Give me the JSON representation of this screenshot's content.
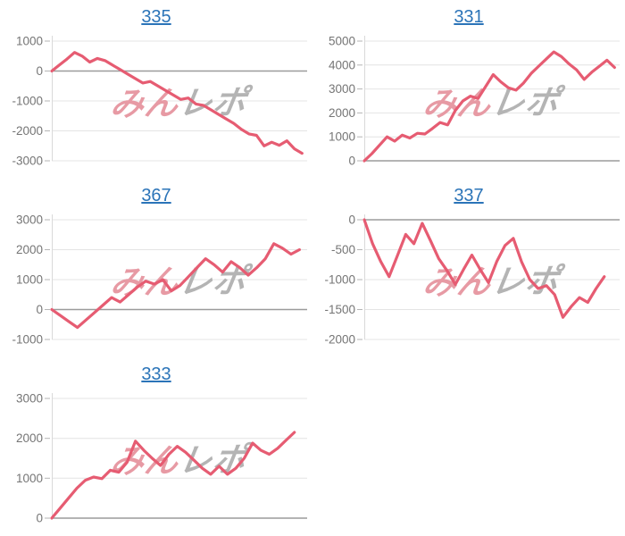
{
  "page": {
    "background": "#ffffff"
  },
  "watermark": {
    "part1": "みん",
    "part2": "レポ"
  },
  "colors": {
    "line": "#e65c72",
    "title_blue": "#2b74b8",
    "tick_gray": "#757575",
    "grid": "#e4e4e4",
    "zero_line": "#9b9b9b",
    "tick_mark": "#b5b5b5",
    "plot_border": "#d9d9d9",
    "watermark_red": "#e79aa4",
    "watermark_gray": "#b4b4b4"
  },
  "chart_data": [
    {
      "type": "line",
      "title": "335",
      "xlabel": "",
      "ylabel": "",
      "ylim": [
        -3000,
        1000
      ],
      "ticks": [
        1000,
        0,
        -1000,
        -2000,
        -3000
      ],
      "grid": true,
      "legend": false,
      "x_end": 0.98,
      "values": [
        0,
        200,
        400,
        620,
        500,
        300,
        420,
        350,
        200,
        50,
        -100,
        -250,
        -400,
        -350,
        -500,
        -650,
        -800,
        -950,
        -900,
        -1100,
        -1150,
        -1300,
        -1450,
        -1600,
        -1750,
        -1950,
        -2100,
        -2150,
        -2500,
        -2380,
        -2480,
        -2330,
        -2600,
        -2750
      ]
    },
    {
      "type": "line",
      "title": "331",
      "xlabel": "",
      "ylabel": "",
      "ylim": [
        0,
        5000
      ],
      "ticks": [
        5000,
        4000,
        3000,
        2000,
        1000,
        0
      ],
      "grid": true,
      "legend": false,
      "x_end": 0.98,
      "values": [
        0,
        300,
        650,
        1000,
        820,
        1070,
        950,
        1150,
        1120,
        1350,
        1600,
        1500,
        2100,
        2500,
        2700,
        2600,
        3100,
        3600,
        3300,
        3050,
        2950,
        3250,
        3650,
        3950,
        4250,
        4550,
        4350,
        4050,
        3800,
        3400,
        3700,
        3950,
        4200,
        3900
      ]
    },
    {
      "type": "line",
      "title": "367",
      "xlabel": "",
      "ylabel": "",
      "ylim": [
        -1000,
        3000
      ],
      "ticks": [
        3000,
        2000,
        1000,
        0,
        -1000
      ],
      "grid": true,
      "legend": false,
      "x_end": 0.97,
      "values": [
        0,
        -200,
        -400,
        -600,
        -350,
        -100,
        150,
        400,
        250,
        500,
        750,
        950,
        850,
        1000,
        620,
        800,
        1100,
        1400,
        1700,
        1500,
        1250,
        1600,
        1400,
        1150,
        1400,
        1700,
        2200,
        2050,
        1850,
        2000
      ]
    },
    {
      "type": "line",
      "title": "337",
      "xlabel": "",
      "ylabel": "",
      "ylim": [
        -2000,
        0
      ],
      "ticks": [
        0,
        -500,
        -1000,
        -1500,
        -2000
      ],
      "grid": true,
      "legend": false,
      "x_end": 0.94,
      "values": [
        0,
        -400,
        -700,
        -950,
        -600,
        -245,
        -400,
        -60,
        -350,
        -650,
        -850,
        -1080,
        -830,
        -590,
        -830,
        -1050,
        -700,
        -430,
        -310,
        -700,
        -1000,
        -1150,
        -1100,
        -1250,
        -1630,
        -1450,
        -1300,
        -1380,
        -1150,
        -950
      ]
    },
    {
      "type": "line",
      "title": "333",
      "xlabel": "",
      "ylabel": "",
      "ylim": [
        0,
        3000
      ],
      "ticks": [
        3000,
        2000,
        1000,
        0
      ],
      "grid": true,
      "legend": false,
      "x_end": 0.95,
      "values": [
        0,
        250,
        500,
        750,
        950,
        1030,
        990,
        1200,
        1150,
        1400,
        1930,
        1700,
        1500,
        1320,
        1600,
        1800,
        1650,
        1450,
        1250,
        1100,
        1300,
        1100,
        1250,
        1500,
        1880,
        1700,
        1600,
        1750,
        1950,
        2150
      ]
    }
  ]
}
